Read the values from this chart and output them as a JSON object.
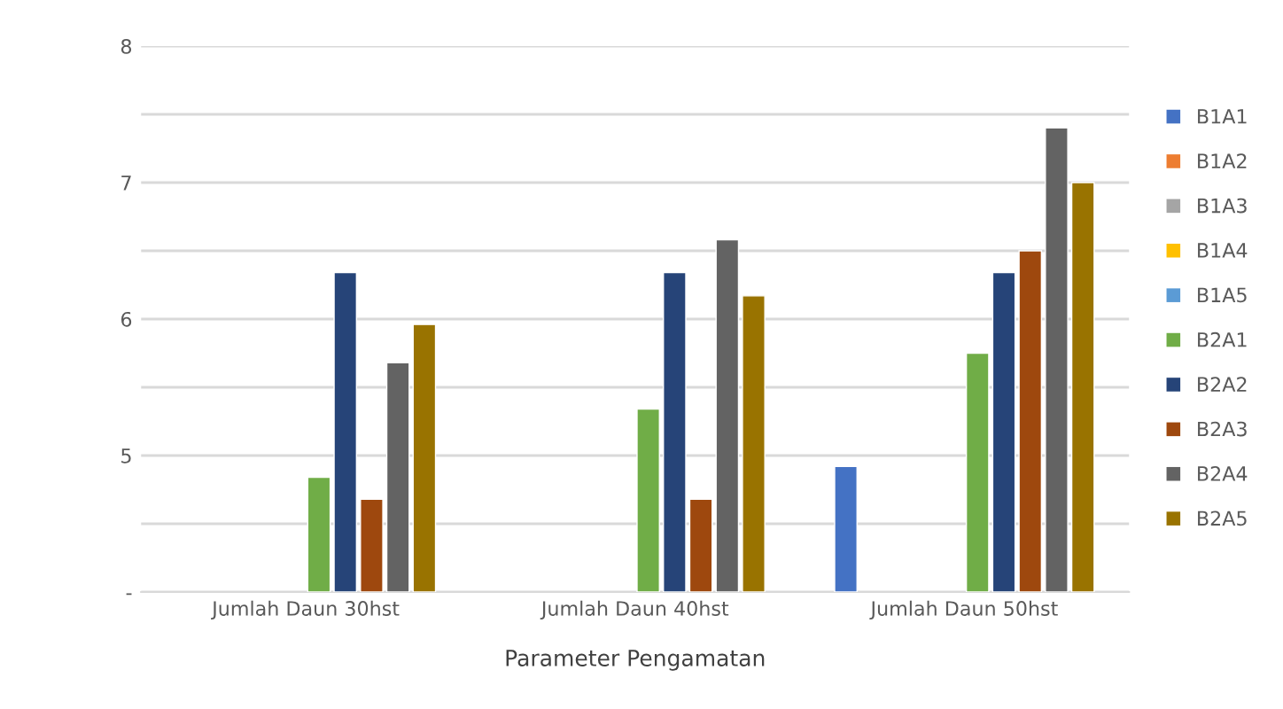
{
  "chart_data": {
    "type": "bar",
    "xlabel": "Parameter Pengamatan",
    "categories": [
      "Jumlah Daun 30hst",
      "Jumlah Daun 40hst",
      "Jumlah Daun 50hst"
    ],
    "series": [
      {
        "name": "B1A1",
        "color": "#4472c4",
        "values": [
          null,
          null,
          4.92
        ]
      },
      {
        "name": "B1A2",
        "color": "#ed7d31",
        "values": [
          null,
          null,
          null
        ]
      },
      {
        "name": "B1A3",
        "color": "#a5a5a5",
        "values": [
          null,
          null,
          null
        ]
      },
      {
        "name": "B1A4",
        "color": "#ffc000",
        "values": [
          null,
          null,
          null
        ]
      },
      {
        "name": "B1A5",
        "color": "#5b9bd5",
        "values": [
          null,
          null,
          null
        ]
      },
      {
        "name": "B2A1",
        "color": "#70ad47",
        "values": [
          4.84,
          5.34,
          5.75
        ]
      },
      {
        "name": "B2A2",
        "color": "#264478",
        "values": [
          6.34,
          6.34,
          6.34
        ]
      },
      {
        "name": "B2A3",
        "color": "#9e480e",
        "values": [
          4.68,
          4.68,
          6.5
        ]
      },
      {
        "name": "B2A4",
        "color": "#636363",
        "values": [
          5.68,
          6.58,
          7.4
        ]
      },
      {
        "name": "B2A5",
        "color": "#997300",
        "values": [
          5.96,
          6.17,
          7.0
        ]
      }
    ],
    "ylim": [
      4,
      8
    ],
    "yticks": [
      {
        "value": 4,
        "label": "-"
      },
      {
        "value": 4.5,
        "label": null
      },
      5,
      {
        "value": 5.5,
        "label": null
      },
      6,
      {
        "value": 6.5,
        "label": null
      },
      7,
      {
        "value": 7.5,
        "label": null
      },
      8
    ],
    "grid": "y",
    "legend": "right"
  }
}
